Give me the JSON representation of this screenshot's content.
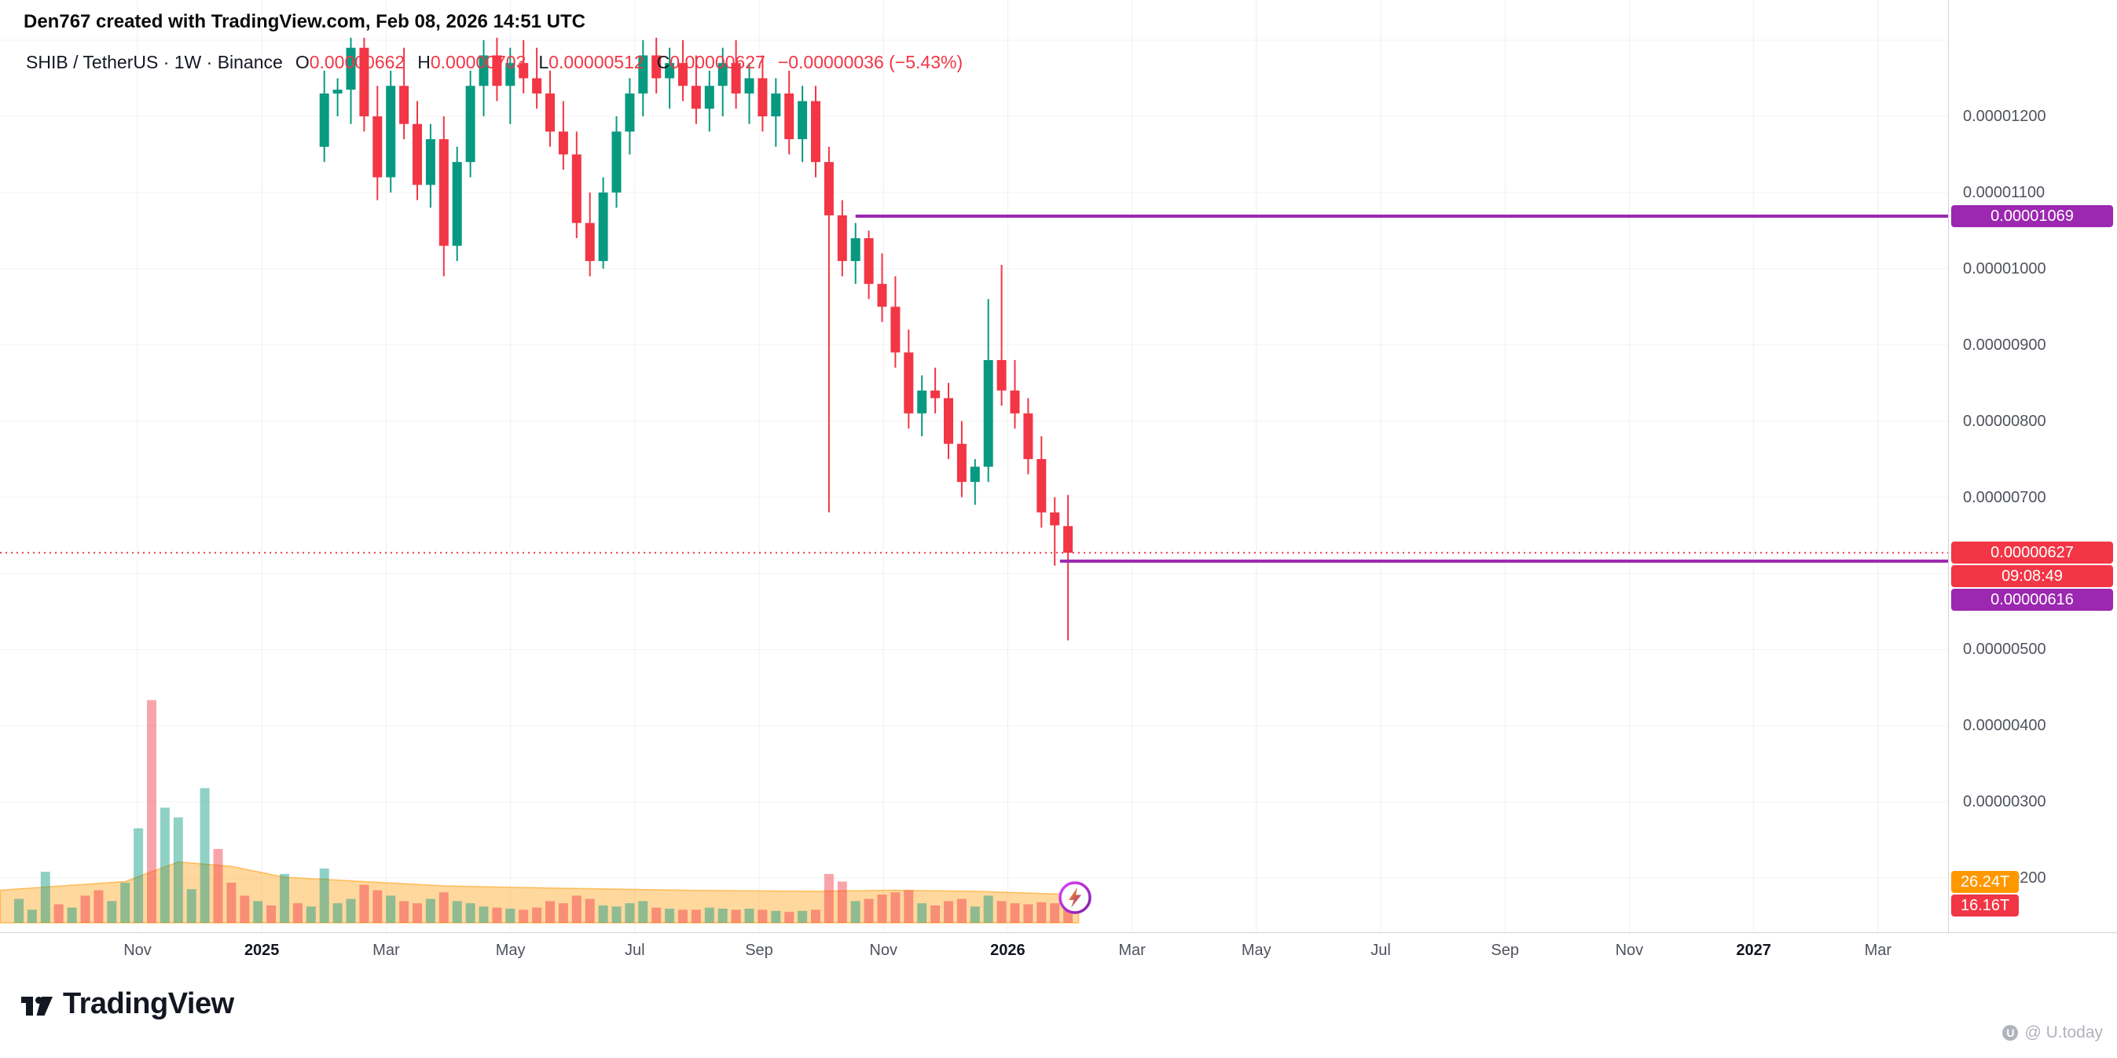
{
  "attribution": "Den767 created with TradingView.com, Feb 08, 2026 14:51 UTC",
  "header": {
    "title": "SHIB / TetherUS · 1W · Binance",
    "ohlc": [
      {
        "k": "O",
        "v": "0.00000662"
      },
      {
        "k": "H",
        "v": "0.00000703"
      },
      {
        "k": "L",
        "v": "0.00000512"
      },
      {
        "k": "C",
        "v": "0.00000627"
      }
    ],
    "change": "−0.00000036 (−5.43%)"
  },
  "footer": {
    "logo_text": "TradingView",
    "watermark_text": "@ U.today",
    "watermark_icon": "U"
  },
  "colors": {
    "up": "#089981",
    "down": "#f23645",
    "level_line": "#9c27b0",
    "current_price": "#f23645",
    "volume_ma": "#ff9800"
  },
  "chart_data": {
    "type": "candlestick",
    "symbol": "SHIB/TetherUS",
    "interval": "1W",
    "exchange": "Binance",
    "price_unit_note": "prices in micro-USDT (1e-6)",
    "y_axis_visible_range_micro": [
      1.4,
      13.3
    ],
    "grid": true,
    "y_ticks": [
      {
        "label": "0.00001200",
        "price_micro": 12.0
      },
      {
        "label": "0.00001100",
        "price_micro": 11.0
      },
      {
        "label": "0.00001000",
        "price_micro": 10.0
      },
      {
        "label": "0.00000900",
        "price_micro": 9.0
      },
      {
        "label": "0.00000800",
        "price_micro": 8.0
      },
      {
        "label": "0.00000700",
        "price_micro": 7.0
      },
      {
        "label": "0.00000500",
        "price_micro": 5.0
      },
      {
        "label": "0.00000400",
        "price_micro": 4.0
      },
      {
        "label": "0.00000300",
        "price_micro": 3.0
      },
      {
        "label": "0.00000200",
        "price_micro": 2.0
      }
    ],
    "grid_prices_micro": [
      13,
      12,
      11,
      10,
      9,
      8,
      7,
      6,
      5,
      4,
      3,
      2
    ],
    "x_ticks": [
      {
        "label": "Nov",
        "bold": false
      },
      {
        "label": "2025",
        "bold": true
      },
      {
        "label": "Mar",
        "bold": false
      },
      {
        "label": "May",
        "bold": false
      },
      {
        "label": "Jul",
        "bold": false
      },
      {
        "label": "Sep",
        "bold": false
      },
      {
        "label": "Nov",
        "bold": false
      },
      {
        "label": "2026",
        "bold": true
      },
      {
        "label": "Mar",
        "bold": false
      },
      {
        "label": "May",
        "bold": false
      },
      {
        "label": "Jul",
        "bold": false
      },
      {
        "label": "Sep",
        "bold": false
      },
      {
        "label": "Nov",
        "bold": false
      },
      {
        "label": "2027",
        "bold": true
      },
      {
        "label": "Mar",
        "bold": false
      }
    ],
    "candles_start_week": 23,
    "candles_micro_ohlc": [
      [
        11.6,
        12.6,
        11.4,
        12.3
      ],
      [
        12.3,
        12.5,
        12.0,
        12.35
      ],
      [
        12.35,
        13.2,
        11.9,
        12.9
      ],
      [
        12.9,
        13.3,
        11.8,
        12.0
      ],
      [
        12.0,
        12.4,
        10.9,
        11.2
      ],
      [
        11.2,
        12.6,
        11.0,
        12.4
      ],
      [
        12.4,
        12.9,
        11.7,
        11.9
      ],
      [
        11.9,
        12.2,
        10.9,
        11.1
      ],
      [
        11.1,
        11.9,
        10.8,
        11.7
      ],
      [
        11.7,
        12.0,
        9.9,
        10.3
      ],
      [
        10.3,
        11.6,
        10.1,
        11.4
      ],
      [
        11.4,
        12.6,
        11.2,
        12.4
      ],
      [
        12.4,
        13.0,
        12.0,
        12.8
      ],
      [
        12.8,
        13.1,
        12.2,
        12.4
      ],
      [
        12.4,
        12.9,
        11.9,
        12.7
      ],
      [
        12.7,
        13.0,
        12.3,
        12.5
      ],
      [
        12.5,
        12.9,
        12.1,
        12.3
      ],
      [
        12.3,
        12.6,
        11.6,
        11.8
      ],
      [
        11.8,
        12.2,
        11.3,
        11.5
      ],
      [
        11.5,
        11.8,
        10.4,
        10.6
      ],
      [
        10.6,
        11.0,
        9.9,
        10.1
      ],
      [
        10.1,
        11.2,
        10.0,
        11.0
      ],
      [
        11.0,
        12.0,
        10.8,
        11.8
      ],
      [
        11.8,
        12.5,
        11.5,
        12.3
      ],
      [
        12.3,
        13.0,
        12.0,
        12.8
      ],
      [
        12.8,
        13.1,
        12.3,
        12.5
      ],
      [
        12.5,
        12.9,
        12.1,
        12.7
      ],
      [
        12.7,
        13.0,
        12.2,
        12.4
      ],
      [
        12.4,
        12.8,
        11.9,
        12.1
      ],
      [
        12.1,
        12.6,
        11.8,
        12.4
      ],
      [
        12.4,
        12.9,
        12.0,
        12.7
      ],
      [
        12.7,
        13.0,
        12.1,
        12.3
      ],
      [
        12.3,
        12.7,
        11.9,
        12.5
      ],
      [
        12.5,
        12.8,
        11.8,
        12.0
      ],
      [
        12.0,
        12.5,
        11.6,
        12.3
      ],
      [
        12.3,
        12.6,
        11.5,
        11.7
      ],
      [
        11.7,
        12.4,
        11.4,
        12.2
      ],
      [
        12.2,
        12.4,
        11.2,
        11.4
      ],
      [
        11.4,
        11.6,
        6.8,
        10.7
      ],
      [
        10.7,
        10.9,
        9.9,
        10.1
      ],
      [
        10.1,
        10.6,
        9.8,
        10.4
      ],
      [
        10.4,
        10.5,
        9.6,
        9.8
      ],
      [
        9.8,
        10.2,
        9.3,
        9.5
      ],
      [
        9.5,
        9.9,
        8.7,
        8.9
      ],
      [
        8.9,
        9.2,
        7.9,
        8.1
      ],
      [
        8.1,
        8.6,
        7.8,
        8.4
      ],
      [
        8.4,
        8.7,
        8.1,
        8.3
      ],
      [
        8.3,
        8.5,
        7.5,
        7.7
      ],
      [
        7.7,
        8.0,
        7.0,
        7.2
      ],
      [
        7.2,
        7.5,
        6.9,
        7.4
      ],
      [
        7.4,
        9.6,
        7.2,
        8.8
      ],
      [
        8.8,
        10.05,
        8.2,
        8.4
      ],
      [
        8.4,
        8.8,
        7.9,
        8.1
      ],
      [
        8.1,
        8.3,
        7.3,
        7.5
      ],
      [
        7.5,
        7.8,
        6.6,
        6.8
      ],
      [
        6.8,
        7.0,
        6.1,
        6.63
      ],
      [
        6.62,
        7.03,
        5.12,
        6.27
      ]
    ],
    "volume_t": [
      [
        22,
        "u"
      ],
      [
        12,
        "u"
      ],
      [
        47,
        "u"
      ],
      [
        17,
        "d"
      ],
      [
        14,
        "u"
      ],
      [
        25,
        "d"
      ],
      [
        30,
        "d"
      ],
      [
        20,
        "u"
      ],
      [
        37,
        "u"
      ],
      [
        87,
        "u"
      ],
      [
        205,
        "d"
      ],
      [
        106,
        "u"
      ],
      [
        97,
        "u"
      ],
      [
        31,
        "u"
      ],
      [
        124,
        "u"
      ],
      [
        68,
        "d"
      ],
      [
        37,
        "d"
      ],
      [
        25,
        "d"
      ],
      [
        20,
        "u"
      ],
      [
        16,
        "d"
      ],
      [
        45,
        "u"
      ],
      [
        18,
        "d"
      ],
      [
        15,
        "u"
      ],
      [
        50,
        "u"
      ],
      [
        18,
        "u"
      ],
      [
        22,
        "u"
      ],
      [
        35,
        "d"
      ],
      [
        30,
        "d"
      ],
      [
        25,
        "u"
      ],
      [
        20,
        "d"
      ],
      [
        18,
        "d"
      ],
      [
        22,
        "u"
      ],
      [
        28,
        "d"
      ],
      [
        20,
        "u"
      ],
      [
        18,
        "u"
      ],
      [
        15,
        "u"
      ],
      [
        14,
        "d"
      ],
      [
        13,
        "u"
      ],
      [
        12,
        "d"
      ],
      [
        14,
        "d"
      ],
      [
        20,
        "d"
      ],
      [
        18,
        "d"
      ],
      [
        25,
        "d"
      ],
      [
        22,
        "d"
      ],
      [
        16,
        "u"
      ],
      [
        15,
        "u"
      ],
      [
        18,
        "u"
      ],
      [
        20,
        "u"
      ],
      [
        14,
        "d"
      ],
      [
        13,
        "u"
      ],
      [
        12,
        "d"
      ],
      [
        12,
        "d"
      ],
      [
        14,
        "u"
      ],
      [
        13,
        "u"
      ],
      [
        12,
        "d"
      ],
      [
        13,
        "u"
      ],
      [
        12,
        "d"
      ],
      [
        11,
        "u"
      ],
      [
        10,
        "d"
      ],
      [
        11,
        "u"
      ],
      [
        12,
        "d"
      ],
      [
        45,
        "d"
      ],
      [
        38,
        "d"
      ],
      [
        20,
        "u"
      ],
      [
        22,
        "d"
      ],
      [
        26,
        "d"
      ],
      [
        28,
        "d"
      ],
      [
        30,
        "d"
      ],
      [
        18,
        "u"
      ],
      [
        16,
        "d"
      ],
      [
        20,
        "d"
      ],
      [
        22,
        "d"
      ],
      [
        15,
        "u"
      ],
      [
        25,
        "u"
      ],
      [
        20,
        "d"
      ],
      [
        18,
        "d"
      ],
      [
        17,
        "d"
      ],
      [
        19,
        "d"
      ],
      [
        18,
        "d"
      ],
      [
        16,
        "d"
      ]
    ],
    "volume_ma_area": [
      [
        -1.4,
        30
      ],
      [
        8,
        38
      ],
      [
        12,
        56
      ],
      [
        16,
        52
      ],
      [
        20,
        42
      ],
      [
        26,
        38
      ],
      [
        32,
        34
      ],
      [
        40,
        32
      ],
      [
        50,
        30
      ],
      [
        60,
        29
      ],
      [
        66,
        30
      ],
      [
        72,
        29
      ],
      [
        79,
        26.24
      ],
      [
        79.8,
        24
      ]
    ],
    "lines": [
      {
        "name": "resistance-level-line",
        "label": "0.00001069",
        "price_micro": 10.69,
        "color": "#9c27b0",
        "width": 4,
        "from_w": 63,
        "interactable": true
      },
      {
        "name": "support-level-line",
        "label": "0.00000616",
        "price_micro": 6.16,
        "color": "#9c27b0",
        "width": 4,
        "from_w": 78.4,
        "interactable": true
      },
      {
        "name": "current-price-line",
        "label": "0.00000627",
        "price_micro": 6.27,
        "color": "#f23645",
        "width": 2,
        "dash": "2,5",
        "from_w": null,
        "interactable": false
      }
    ],
    "price_labels": [
      {
        "name": "level-price-label-1069",
        "label": "0.00001069",
        "price_micro": 10.69,
        "bg": "#9c27b0"
      },
      {
        "name": "current-price-label",
        "label": "0.00000627",
        "price_micro": 6.27,
        "bg": "#f23645"
      },
      {
        "name": "bar-countdown-label",
        "label": "09:08:49",
        "price_micro": null,
        "bg": "#f23645"
      },
      {
        "name": "level-price-label-616",
        "label": "0.00000616",
        "price_micro": 6.16,
        "bg": "#9c27b0"
      }
    ],
    "volume_labels": [
      {
        "name": "volume-ma-label",
        "label": "26.24T",
        "value_t": 26.24,
        "bg": "#ff9800"
      },
      {
        "name": "volume-value-label",
        "label": "16.16T",
        "value_t": 16.16,
        "bg": "#f23645"
      }
    ]
  }
}
